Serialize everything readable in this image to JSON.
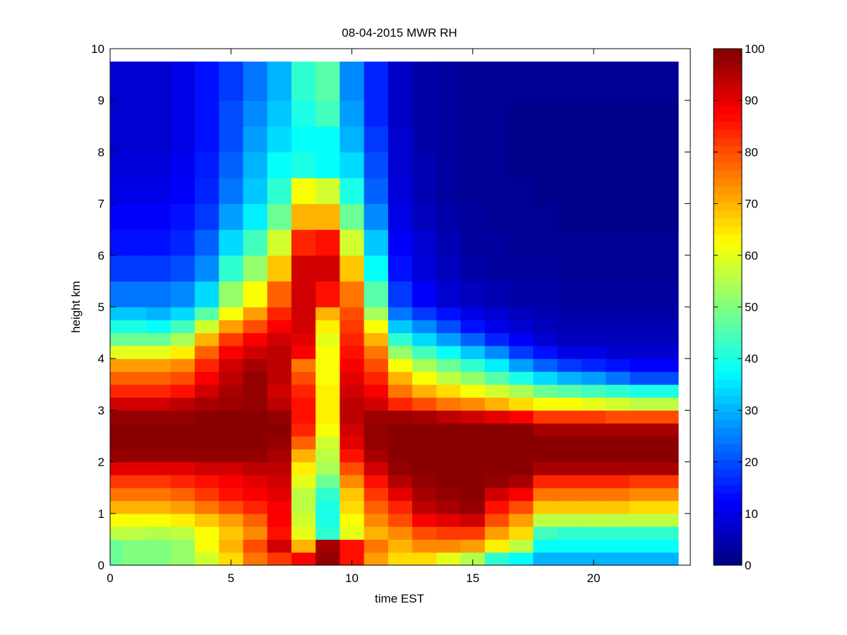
{
  "chart_data": {
    "type": "heatmap",
    "title": "08-04-2015 MWR RH",
    "xlabel": "time EST",
    "ylabel": "height km",
    "xlim": [
      0,
      24
    ],
    "ylim": [
      0,
      10
    ],
    "xticks": [
      "0",
      "5",
      "10",
      "15",
      "20"
    ],
    "yticks": [
      "0",
      "1",
      "2",
      "3",
      "4",
      "5",
      "6",
      "7",
      "8",
      "9",
      "10"
    ],
    "colorbar": {
      "colormap": "jet",
      "clim": [
        0,
        100
      ],
      "ticks": [
        "0",
        "10",
        "20",
        "30",
        "40",
        "50",
        "60",
        "70",
        "80",
        "90",
        "100"
      ]
    },
    "x": [
      0,
      1,
      2,
      3,
      4,
      5,
      6,
      7,
      8,
      9,
      10,
      11,
      12,
      13,
      14,
      15,
      16,
      17,
      18,
      19,
      20,
      21,
      22,
      23
    ],
    "cell_width": 1,
    "y": [
      0.125,
      0.375,
      0.625,
      0.875,
      1.125,
      1.375,
      1.625,
      1.875,
      2.125,
      2.375,
      2.625,
      2.875,
      3.125,
      3.375,
      3.625,
      3.875,
      4.125,
      4.375,
      4.625,
      4.875,
      5.25,
      5.75,
      6.25,
      6.75,
      7.25,
      7.75,
      8.25,
      8.75,
      9.5
    ],
    "y_edges": [
      0,
      0.25,
      0.5,
      0.75,
      1.0,
      1.25,
      1.5,
      1.75,
      2.0,
      2.25,
      2.5,
      2.75,
      3.0,
      3.25,
      3.5,
      3.75,
      4.0,
      4.25,
      4.5,
      4.75,
      5.0,
      5.5,
      6.0,
      6.5,
      7.0,
      7.5,
      8.0,
      8.5,
      9.0,
      9.75
    ],
    "rh_values": [
      [
        48,
        50,
        50,
        52,
        58,
        66,
        76,
        82,
        88,
        98,
        86,
        72,
        66,
        66,
        60,
        55,
        42,
        38,
        30,
        30,
        30,
        30,
        30,
        30
      ],
      [
        48,
        50,
        50,
        52,
        62,
        70,
        80,
        92,
        70,
        96,
        86,
        76,
        70,
        74,
        74,
        72,
        64,
        56,
        38,
        38,
        38,
        38,
        38,
        38
      ],
      [
        56,
        56,
        55,
        56,
        62,
        68,
        74,
        86,
        60,
        42,
        60,
        70,
        74,
        80,
        82,
        82,
        72,
        66,
        44,
        42,
        42,
        42,
        42,
        42
      ],
      [
        62,
        62,
        62,
        64,
        68,
        72,
        78,
        88,
        58,
        40,
        62,
        74,
        80,
        88,
        90,
        92,
        80,
        72,
        56,
        56,
        56,
        56,
        56,
        56
      ],
      [
        70,
        70,
        70,
        72,
        76,
        80,
        84,
        88,
        56,
        40,
        66,
        78,
        84,
        94,
        96,
        98,
        86,
        80,
        68,
        68,
        68,
        68,
        66,
        66
      ],
      [
        76,
        76,
        76,
        78,
        82,
        86,
        88,
        90,
        56,
        42,
        68,
        82,
        90,
        96,
        98,
        99,
        92,
        88,
        76,
        76,
        76,
        76,
        74,
        74
      ],
      [
        82,
        82,
        82,
        84,
        86,
        88,
        90,
        92,
        60,
        48,
        74,
        86,
        95,
        98,
        99,
        99,
        98,
        96,
        84,
        84,
        84,
        84,
        82,
        82
      ],
      [
        90,
        90,
        90,
        90,
        92,
        92,
        94,
        94,
        64,
        54,
        80,
        92,
        98,
        99,
        99,
        99,
        99,
        99,
        96,
        96,
        96,
        96,
        96,
        96
      ],
      [
        98,
        98,
        98,
        98,
        98,
        98,
        98,
        96,
        70,
        56,
        86,
        96,
        99,
        99,
        99,
        99,
        99,
        99,
        99,
        99,
        99,
        99,
        99,
        99
      ],
      [
        99,
        99,
        99,
        99,
        99,
        99,
        99,
        98,
        78,
        58,
        90,
        98,
        99,
        99,
        99,
        99,
        99,
        99,
        99,
        99,
        99,
        99,
        99,
        99
      ],
      [
        99,
        99,
        99,
        99,
        99,
        99,
        99,
        99,
        84,
        62,
        92,
        98,
        99,
        99,
        99,
        99,
        99,
        99,
        96,
        96,
        96,
        96,
        96,
        96
      ],
      [
        98,
        98,
        98,
        98,
        99,
        99,
        99,
        98,
        86,
        64,
        94,
        97,
        97,
        96,
        94,
        92,
        90,
        88,
        82,
        82,
        82,
        80,
        80,
        80
      ],
      [
        92,
        92,
        92,
        94,
        96,
        97,
        98,
        94,
        86,
        64,
        94,
        92,
        84,
        80,
        76,
        74,
        70,
        66,
        62,
        62,
        60,
        58,
        56,
        56
      ],
      [
        84,
        84,
        84,
        86,
        92,
        96,
        98,
        92,
        84,
        64,
        92,
        88,
        76,
        70,
        66,
        62,
        58,
        54,
        48,
        46,
        44,
        42,
        40,
        40
      ],
      [
        78,
        78,
        78,
        80,
        88,
        94,
        98,
        94,
        80,
        62,
        90,
        84,
        70,
        62,
        56,
        52,
        46,
        40,
        34,
        30,
        28,
        24,
        20,
        20
      ],
      [
        72,
        72,
        72,
        74,
        84,
        92,
        96,
        94,
        76,
        62,
        88,
        80,
        62,
        54,
        48,
        42,
        36,
        28,
        22,
        18,
        16,
        14,
        12,
        12
      ],
      [
        60,
        60,
        60,
        64,
        78,
        88,
        92,
        94,
        88,
        62,
        86,
        76,
        52,
        44,
        38,
        32,
        26,
        18,
        14,
        10,
        10,
        8,
        8,
        8
      ],
      [
        48,
        48,
        48,
        54,
        70,
        82,
        88,
        92,
        90,
        60,
        84,
        70,
        42,
        34,
        28,
        22,
        16,
        12,
        8,
        6,
        6,
        6,
        6,
        6
      ],
      [
        40,
        40,
        38,
        44,
        58,
        72,
        80,
        88,
        92,
        64,
        82,
        62,
        32,
        26,
        20,
        14,
        10,
        8,
        6,
        5,
        5,
        5,
        5,
        5
      ],
      [
        32,
        32,
        30,
        34,
        46,
        62,
        72,
        84,
        92,
        70,
        80,
        54,
        24,
        18,
        14,
        10,
        8,
        6,
        5,
        4,
        4,
        4,
        4,
        4
      ],
      [
        24,
        24,
        24,
        26,
        34,
        52,
        62,
        78,
        92,
        86,
        76,
        46,
        18,
        12,
        8,
        6,
        5,
        4,
        4,
        3,
        3,
        3,
        3,
        3
      ],
      [
        18,
        18,
        18,
        20,
        26,
        42,
        52,
        68,
        92,
        92,
        68,
        38,
        14,
        9,
        6,
        4,
        3,
        3,
        3,
        2,
        2,
        2,
        2,
        2
      ],
      [
        14,
        14,
        14,
        16,
        22,
        34,
        44,
        58,
        84,
        86,
        58,
        32,
        12,
        8,
        5,
        3,
        3,
        2,
        2,
        2,
        2,
        2,
        2,
        2
      ],
      [
        12,
        12,
        12,
        14,
        18,
        28,
        36,
        48,
        70,
        70,
        48,
        26,
        10,
        6,
        4,
        3,
        2,
        2,
        2,
        1,
        1,
        1,
        1,
        1
      ],
      [
        10,
        10,
        10,
        12,
        16,
        24,
        32,
        42,
        62,
        58,
        40,
        22,
        9,
        5,
        3,
        2,
        2,
        2,
        1,
        1,
        1,
        1,
        1,
        1
      ],
      [
        9,
        9,
        9,
        11,
        15,
        22,
        30,
        38,
        40,
        38,
        34,
        20,
        8,
        5,
        3,
        2,
        2,
        1,
        1,
        1,
        1,
        1,
        1,
        1
      ],
      [
        8,
        8,
        8,
        10,
        14,
        20,
        28,
        34,
        38,
        38,
        30,
        18,
        8,
        4,
        3,
        2,
        2,
        1,
        1,
        1,
        1,
        1,
        1,
        1
      ],
      [
        8,
        8,
        8,
        10,
        14,
        20,
        26,
        32,
        40,
        44,
        28,
        16,
        7,
        4,
        3,
        2,
        2,
        1,
        1,
        1,
        1,
        1,
        1,
        1
      ],
      [
        8,
        8,
        8,
        10,
        14,
        18,
        24,
        30,
        42,
        46,
        26,
        16,
        7,
        4,
        3,
        2,
        2,
        2,
        2,
        2,
        2,
        2,
        2,
        2
      ]
    ]
  }
}
